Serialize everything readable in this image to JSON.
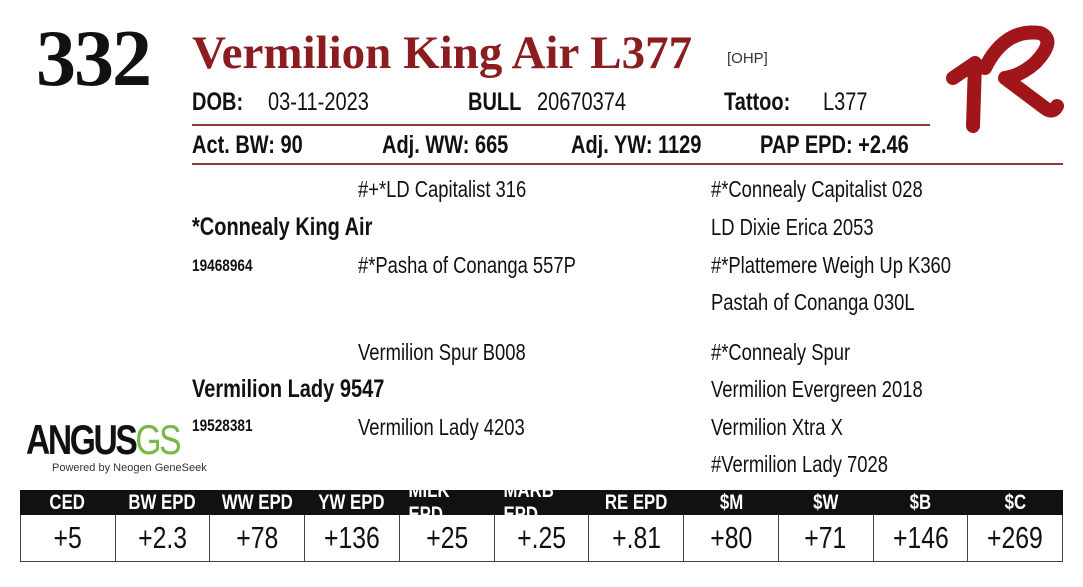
{
  "lot": "332",
  "name": "Vermilion King Air L377",
  "tag": "[OHP]",
  "info": {
    "dob_label": "DOB:",
    "dob": "03-11-2023",
    "sex": "BULL",
    "registration": "20670374",
    "tattoo_label": "Tattoo:",
    "tattoo": "L377"
  },
  "performance": [
    "Act. BW: 90",
    "Adj. WW: 665",
    "Adj. YW: 1129",
    "PAP EPD: +2.46"
  ],
  "pedigree": {
    "sire": {
      "name": "*Connealy King Air",
      "registration": "19468964",
      "sire": "#+*LD Capitalist 316",
      "dam": "#*Pasha of Conanga 557P",
      "grandparents": [
        "#*Connealy Capitalist 028",
        "LD Dixie Erica 2053",
        "#*Plattemere Weigh Up K360",
        "Pastah of Conanga 030L"
      ]
    },
    "dam": {
      "name": "Vermilion Lady 9547",
      "registration": "19528381",
      "sire": "Vermilion Spur B008",
      "dam": "Vermilion Lady 4203",
      "grandparents": [
        "#*Connealy Spur",
        "Vermilion Evergreen 2018",
        "Vermilion Xtra X",
        "#Vermilion Lady 7028"
      ]
    }
  },
  "logo": {
    "main": "ANGUS",
    "accent": "GS",
    "caption": "Powered by Neogen GeneSeek"
  },
  "epd": {
    "headers": [
      "CED",
      "BW EPD",
      "WW EPD",
      "YW EPD",
      "MILK EPD",
      "MARB EPD",
      "RE EPD",
      "$M",
      "$W",
      "$B",
      "$C"
    ],
    "values": [
      "+5",
      "+2.3",
      "+78",
      "+136",
      "+25",
      "+.25",
      "+.81",
      "+80",
      "+71",
      "+146",
      "+269"
    ]
  }
}
